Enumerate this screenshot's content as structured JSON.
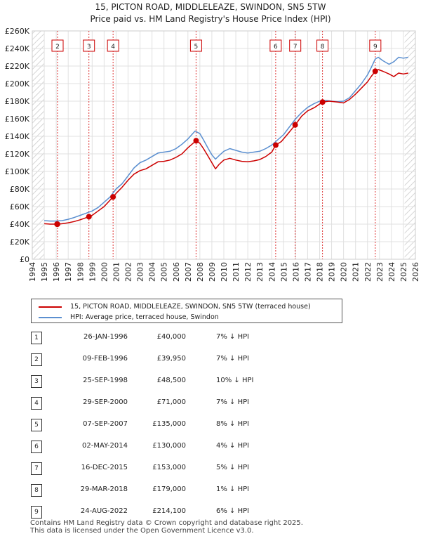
{
  "chart_data": {
    "type": "line",
    "title": "15, PICTON ROAD, MIDDLELEAZE, SWINDON, SN5 5TW",
    "subtitle": "Price paid vs. HM Land Registry's House Price Index (HPI)",
    "xlim": [
      1994,
      2026
    ],
    "ylim": [
      0,
      260000
    ],
    "x_ticks": [
      "1994",
      "1995",
      "1996",
      "1997",
      "1998",
      "1999",
      "2000",
      "2001",
      "2002",
      "2003",
      "2004",
      "2005",
      "2006",
      "2007",
      "2008",
      "2009",
      "2010",
      "2011",
      "2012",
      "2013",
      "2014",
      "2015",
      "2016",
      "2017",
      "2018",
      "2019",
      "2020",
      "2021",
      "2022",
      "2023",
      "2024",
      "2025",
      "2026"
    ],
    "y_ticks": [
      {
        "value": 0,
        "label": "£0"
      },
      {
        "value": 20000,
        "label": "£20K"
      },
      {
        "value": 40000,
        "label": "£40K"
      },
      {
        "value": 60000,
        "label": "£60K"
      },
      {
        "value": 80000,
        "label": "£80K"
      },
      {
        "value": 100000,
        "label": "£100K"
      },
      {
        "value": 120000,
        "label": "£120K"
      },
      {
        "value": 140000,
        "label": "£140K"
      },
      {
        "value": 160000,
        "label": "£160K"
      },
      {
        "value": 180000,
        "label": "£180K"
      },
      {
        "value": 200000,
        "label": "£200K"
      },
      {
        "value": 220000,
        "label": "£220K"
      },
      {
        "value": 240000,
        "label": "£240K"
      },
      {
        "value": 260000,
        "label": "£260K"
      }
    ],
    "grid": true,
    "hatched_ranges": [
      [
        1994.0,
        1995.0
      ],
      [
        2025.1,
        2026.0
      ]
    ],
    "sale_markers": [
      {
        "label": "2",
        "x": 1996.11
      },
      {
        "label": "3",
        "x": 1998.73
      },
      {
        "label": "4",
        "x": 2000.75
      },
      {
        "label": "5",
        "x": 2007.68
      },
      {
        "label": "6",
        "x": 2014.33
      },
      {
        "label": "7",
        "x": 2015.96
      },
      {
        "label": "8",
        "x": 2018.24
      },
      {
        "label": "9",
        "x": 2022.65
      }
    ],
    "series": [
      {
        "name": "15, PICTON ROAD, MIDDLELEAZE, SWINDON, SN5 5TW (terraced house)",
        "color": "#cc0000",
        "points": [
          [
            1995.0,
            40500
          ],
          [
            1995.5,
            40000
          ],
          [
            1996.0,
            40000
          ],
          [
            1996.11,
            39950
          ],
          [
            1996.5,
            40500
          ],
          [
            1997.0,
            41500
          ],
          [
            1997.5,
            43000
          ],
          [
            1998.0,
            45000
          ],
          [
            1998.73,
            48500
          ],
          [
            1999.0,
            50000
          ],
          [
            1999.5,
            55000
          ],
          [
            2000.0,
            60000
          ],
          [
            2000.75,
            71000
          ],
          [
            2001.0,
            75000
          ],
          [
            2001.5,
            82000
          ],
          [
            2002.0,
            90000
          ],
          [
            2002.5,
            97000
          ],
          [
            2003.0,
            101000
          ],
          [
            2003.5,
            103000
          ],
          [
            2004.0,
            107000
          ],
          [
            2004.5,
            111000
          ],
          [
            2005.0,
            111500
          ],
          [
            2005.5,
            113000
          ],
          [
            2006.0,
            116000
          ],
          [
            2006.5,
            120000
          ],
          [
            2007.0,
            127000
          ],
          [
            2007.68,
            135000
          ],
          [
            2008.0,
            132000
          ],
          [
            2008.3,
            126000
          ],
          [
            2008.7,
            117000
          ],
          [
            2009.0,
            110000
          ],
          [
            2009.3,
            103000
          ],
          [
            2009.6,
            108000
          ],
          [
            2010.0,
            113000
          ],
          [
            2010.5,
            115000
          ],
          [
            2011.0,
            113000
          ],
          [
            2011.5,
            111500
          ],
          [
            2012.0,
            111000
          ],
          [
            2012.5,
            112000
          ],
          [
            2013.0,
            113500
          ],
          [
            2013.5,
            117000
          ],
          [
            2014.0,
            122000
          ],
          [
            2014.33,
            130000
          ],
          [
            2014.8,
            134000
          ],
          [
            2015.3,
            142000
          ],
          [
            2015.96,
            153000
          ],
          [
            2016.5,
            163000
          ],
          [
            2017.0,
            169000
          ],
          [
            2017.6,
            173000
          ],
          [
            2018.24,
            179000
          ],
          [
            2018.8,
            180000
          ],
          [
            2019.5,
            179000
          ],
          [
            2020.0,
            178000
          ],
          [
            2020.5,
            182000
          ],
          [
            2021.0,
            188000
          ],
          [
            2021.5,
            195000
          ],
          [
            2022.0,
            202000
          ],
          [
            2022.3,
            208000
          ],
          [
            2022.65,
            214100
          ],
          [
            2022.9,
            216000
          ],
          [
            2023.3,
            214000
          ],
          [
            2023.8,
            211000
          ],
          [
            2024.2,
            208000
          ],
          [
            2024.6,
            212000
          ],
          [
            2025.0,
            211000
          ],
          [
            2025.4,
            212000
          ]
        ]
      },
      {
        "name": "HPI: Average price, terraced house, Swindon",
        "color": "#5b8fd0",
        "points": [
          [
            1995.0,
            44000
          ],
          [
            1995.5,
            43500
          ],
          [
            1996.0,
            43500
          ],
          [
            1996.5,
            44000
          ],
          [
            1997.0,
            45500
          ],
          [
            1997.5,
            47500
          ],
          [
            1998.0,
            50000
          ],
          [
            1998.5,
            52500
          ],
          [
            1999.0,
            55000
          ],
          [
            1999.5,
            59000
          ],
          [
            2000.0,
            65000
          ],
          [
            2000.5,
            71000
          ],
          [
            2001.0,
            80000
          ],
          [
            2001.5,
            86000
          ],
          [
            2002.0,
            95000
          ],
          [
            2002.5,
            104000
          ],
          [
            2003.0,
            110000
          ],
          [
            2003.5,
            113000
          ],
          [
            2004.0,
            117000
          ],
          [
            2004.5,
            121000
          ],
          [
            2005.0,
            122000
          ],
          [
            2005.5,
            123000
          ],
          [
            2006.0,
            126000
          ],
          [
            2006.5,
            131000
          ],
          [
            2007.0,
            137000
          ],
          [
            2007.6,
            146000
          ],
          [
            2008.0,
            143000
          ],
          [
            2008.3,
            136000
          ],
          [
            2008.7,
            126000
          ],
          [
            2009.0,
            119000
          ],
          [
            2009.3,
            114000
          ],
          [
            2009.6,
            118000
          ],
          [
            2010.0,
            123000
          ],
          [
            2010.5,
            126000
          ],
          [
            2011.0,
            124000
          ],
          [
            2011.5,
            122000
          ],
          [
            2012.0,
            121000
          ],
          [
            2012.5,
            122000
          ],
          [
            2013.0,
            123000
          ],
          [
            2013.5,
            126000
          ],
          [
            2014.0,
            130000
          ],
          [
            2014.5,
            136000
          ],
          [
            2015.0,
            142000
          ],
          [
            2015.5,
            151000
          ],
          [
            2016.0,
            160000
          ],
          [
            2016.5,
            167000
          ],
          [
            2017.0,
            173000
          ],
          [
            2017.5,
            177000
          ],
          [
            2018.0,
            180000
          ],
          [
            2018.5,
            181000
          ],
          [
            2019.0,
            180000
          ],
          [
            2019.5,
            179500
          ],
          [
            2020.0,
            180000
          ],
          [
            2020.5,
            184000
          ],
          [
            2021.0,
            192000
          ],
          [
            2021.5,
            200000
          ],
          [
            2022.0,
            210000
          ],
          [
            2022.3,
            218000
          ],
          [
            2022.65,
            228000
          ],
          [
            2022.9,
            230000
          ],
          [
            2023.3,
            226000
          ],
          [
            2023.8,
            222000
          ],
          [
            2024.2,
            225000
          ],
          [
            2024.6,
            230000
          ],
          [
            2025.0,
            229000
          ],
          [
            2025.4,
            230000
          ]
        ]
      }
    ]
  },
  "legend": {
    "property_label": "15, PICTON ROAD, MIDDLELEAZE, SWINDON, SN5 5TW (terraced house)",
    "hpi_label": "HPI: Average price, terraced house, Swindon",
    "property_color": "#cc0000",
    "hpi_color": "#5b8fd0"
  },
  "sales": [
    {
      "num": "1",
      "date": "26-JAN-1996",
      "price": "£40,000",
      "diff": "7% ↓ HPI"
    },
    {
      "num": "2",
      "date": "09-FEB-1996",
      "price": "£39,950",
      "diff": "7% ↓ HPI"
    },
    {
      "num": "3",
      "date": "25-SEP-1998",
      "price": "£48,500",
      "diff": "10% ↓ HPI"
    },
    {
      "num": "4",
      "date": "29-SEP-2000",
      "price": "£71,000",
      "diff": "7% ↓ HPI"
    },
    {
      "num": "5",
      "date": "07-SEP-2007",
      "price": "£135,000",
      "diff": "8% ↓ HPI"
    },
    {
      "num": "6",
      "date": "02-MAY-2014",
      "price": "£130,000",
      "diff": "4% ↓ HPI"
    },
    {
      "num": "7",
      "date": "16-DEC-2015",
      "price": "£153,000",
      "diff": "5% ↓ HPI"
    },
    {
      "num": "8",
      "date": "29-MAR-2018",
      "price": "£179,000",
      "diff": "1% ↓ HPI"
    },
    {
      "num": "9",
      "date": "24-AUG-2022",
      "price": "£214,100",
      "diff": "6% ↓ HPI"
    }
  ],
  "footer": {
    "line1": "Contains HM Land Registry data © Crown copyright and database right 2025.",
    "line2": "This data is licensed under the Open Government Licence v3.0."
  }
}
